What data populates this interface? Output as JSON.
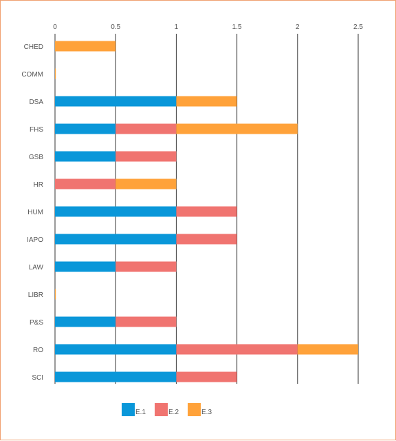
{
  "chart_data": {
    "type": "bar",
    "orientation": "horizontal",
    "stacked": true,
    "categories": [
      "CHED",
      "COMM",
      "DSA",
      "FHS",
      "GSB",
      "HR",
      "HUM",
      "IAPO",
      "LAW",
      "LIBR",
      "P&S",
      "RO",
      "SCI"
    ],
    "series": [
      {
        "name": "E.1",
        "color": "#0a97d9",
        "values": [
          0,
          0,
          1,
          0.5,
          0.5,
          0,
          1,
          1,
          0.5,
          0,
          0.5,
          1,
          1
        ]
      },
      {
        "name": "E.2",
        "color": "#f07470",
        "values": [
          0,
          0,
          0,
          0.5,
          0.5,
          0.5,
          0.5,
          0.5,
          0.5,
          0,
          0.5,
          1,
          0.5
        ]
      },
      {
        "name": "E.3",
        "color": "#ffa23a",
        "values": [
          0.5,
          0.005,
          0.5,
          1,
          0,
          0.5,
          0,
          0,
          0,
          0.005,
          0,
          0.5,
          0
        ]
      }
    ],
    "xlim": [
      0,
      2.5
    ],
    "x_ticks": [
      "0",
      "0.5",
      "1",
      "1.5",
      "2",
      "2.5"
    ],
    "x_tick_values": [
      0,
      0.5,
      1,
      1.5,
      2,
      2.5
    ],
    "x_axis_position": "top",
    "grid": true,
    "legend_position": "bottom-center",
    "title": "",
    "xlabel": "",
    "ylabel": ""
  }
}
